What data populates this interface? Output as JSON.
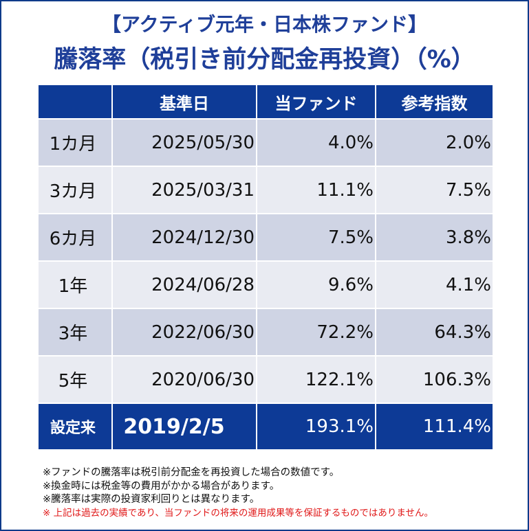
{
  "title": {
    "line1": "【アクティブ元年・日本株ファンド】",
    "line2": "騰落率（税引き前分配金再投資）（%）"
  },
  "table": {
    "headers": [
      "",
      "基準日",
      "当ファンド",
      "参考指数"
    ],
    "rows": [
      {
        "period": "1カ月",
        "date": "2025/05/30",
        "fund": "4.0%",
        "index": "2.0%"
      },
      {
        "period": "3カ月",
        "date": "2025/03/31",
        "fund": "11.1%",
        "index": "7.5%"
      },
      {
        "period": "6カ月",
        "date": "2024/12/30",
        "fund": "7.5%",
        "index": "3.8%"
      },
      {
        "period": "1年",
        "date": "2024/06/28",
        "fund": "9.6%",
        "index": "4.1%"
      },
      {
        "period": "3年",
        "date": "2022/06/30",
        "fund": "72.2%",
        "index": "64.3%"
      },
      {
        "period": "5年",
        "date": "2020/06/30",
        "fund": "122.1%",
        "index": "106.3%"
      },
      {
        "period": "設定来",
        "date": "2019/2/5",
        "fund": "193.1%",
        "index": "111.4%"
      }
    ]
  },
  "notes": [
    "※ファンドの騰落率は税引前分配金を再投資した場合の数値です。",
    "※換金時には税金等の費用がかかる場合があります。",
    "※騰落率は実際の投資家利回りとは異なります。"
  ],
  "warning": "※ 上記は過去の実績であり、当ファンドの将来の運用成果等を保証するものではありません。",
  "colors": {
    "header_bg": "#0d3a96",
    "title_text": "#1f3f99",
    "row_dark": "#cfd4e4",
    "row_light": "#e9ebf2",
    "warning_text": "#e01818"
  }
}
